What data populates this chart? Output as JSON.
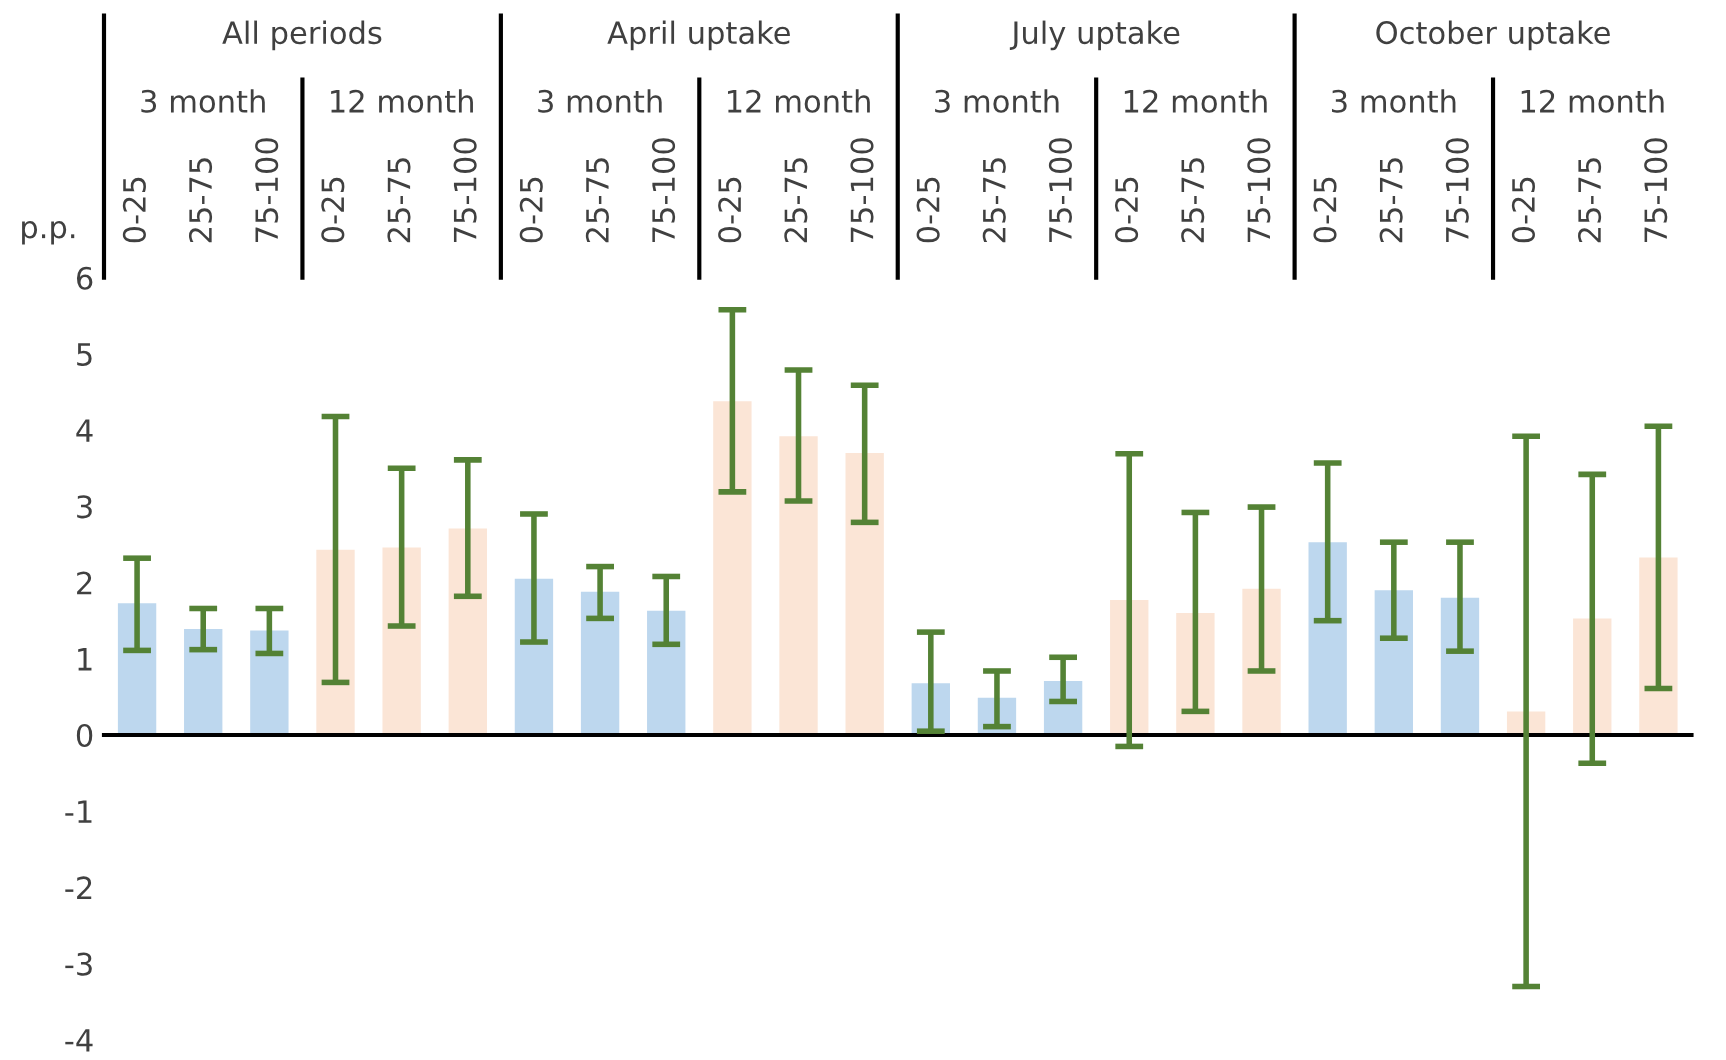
{
  "chart_data": {
    "type": "bar",
    "ylabel": "p.p.",
    "annotations": [
      "All periods",
      "April uptake",
      "July uptake",
      "October uptake",
      "3 month",
      "12 month",
      "3 month",
      "12 month",
      "3 month",
      "12 month",
      "3 month",
      "12 month"
    ],
    "categories": [
      "0-25",
      "25-75",
      "75-100",
      "0-25",
      "25-75",
      "75-100",
      "0-25",
      "25-75",
      "75-100",
      "0-25",
      "25-75",
      "75-100",
      "0-25",
      "25-75",
      "75-100",
      "0-25",
      "25-75",
      "75-100",
      "0-25",
      "25-75",
      "75-100",
      "0-25",
      "25-75",
      "75-100"
    ],
    "values": [
      1.73,
      1.39,
      1.37,
      2.43,
      2.46,
      2.71,
      2.05,
      1.88,
      1.63,
      4.38,
      3.92,
      3.7,
      0.68,
      0.49,
      0.71,
      1.77,
      1.6,
      1.92,
      2.53,
      1.9,
      1.8,
      0.31,
      1.53,
      2.33
    ],
    "errors": [
      [
        1.11,
        2.32
      ],
      [
        1.12,
        1.66
      ],
      [
        1.07,
        1.66
      ],
      [
        0.69,
        4.18
      ],
      [
        1.43,
        3.5
      ],
      [
        1.82,
        3.61
      ],
      [
        1.22,
        2.9
      ],
      [
        1.53,
        2.21
      ],
      [
        1.19,
        2.08
      ],
      [
        3.19,
        5.58
      ],
      [
        3.07,
        4.79
      ],
      [
        2.79,
        4.59
      ],
      [
        0.05,
        1.35
      ],
      [
        0.11,
        0.84
      ],
      [
        0.44,
        1.02
      ],
      [
        -0.15,
        3.69
      ],
      [
        0.31,
        2.92
      ],
      [
        0.84,
        2.99
      ],
      [
        1.5,
        3.57
      ],
      [
        1.27,
        2.53
      ],
      [
        1.1,
        2.53
      ],
      [
        -3.3,
        3.92
      ],
      [
        -0.37,
        3.42
      ],
      [
        0.61,
        4.05
      ]
    ],
    "colors": [
      "#bdd7ee",
      "#bdd7ee",
      "#bdd7ee",
      "#fbe5d6",
      "#fbe5d6",
      "#fbe5d6",
      "#bdd7ee",
      "#bdd7ee",
      "#bdd7ee",
      "#fbe5d6",
      "#fbe5d6",
      "#fbe5d6",
      "#bdd7ee",
      "#bdd7ee",
      "#bdd7ee",
      "#fbe5d6",
      "#fbe5d6",
      "#fbe5d6",
      "#bdd7ee",
      "#bdd7ee",
      "#bdd7ee",
      "#fbe5d6",
      "#fbe5d6",
      "#fbe5d6"
    ],
    "ylim": [
      -4,
      6
    ],
    "yticks": [
      -4,
      -3,
      -2,
      -1,
      0,
      1,
      2,
      3,
      4,
      5,
      6
    ],
    "grid": false,
    "legend": false
  }
}
